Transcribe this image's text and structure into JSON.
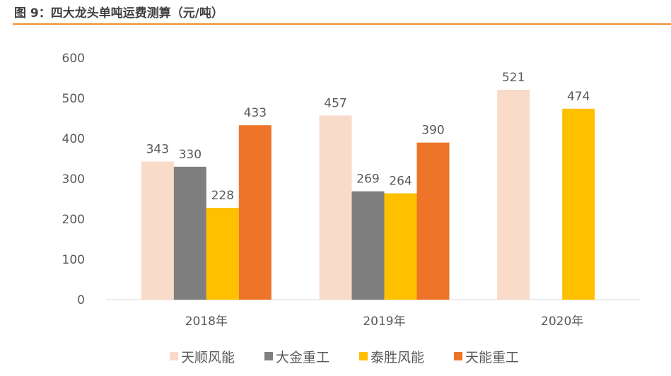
{
  "title": "图 9：四大龙头单吨运费测算（元/吨）",
  "chart_data": {
    "type": "bar",
    "categories": [
      "2018年",
      "2019年",
      "2020年"
    ],
    "series": [
      {
        "name": "天顺风能",
        "color": "#f9dbc9",
        "values": [
          343,
          457,
          521
        ]
      },
      {
        "name": "大金重工",
        "color": "#7f7f7f",
        "values": [
          330,
          269,
          null
        ]
      },
      {
        "name": "泰胜风能",
        "color": "#ffc000",
        "values": [
          228,
          264,
          474
        ]
      },
      {
        "name": "天能重工",
        "color": "#ed7428",
        "values": [
          433,
          390,
          null
        ]
      }
    ],
    "ylim": [
      0,
      600
    ],
    "yticks": [
      0,
      100,
      200,
      300,
      400,
      500,
      600
    ],
    "grid": false,
    "legend": "bottom",
    "data_labels": true
  }
}
